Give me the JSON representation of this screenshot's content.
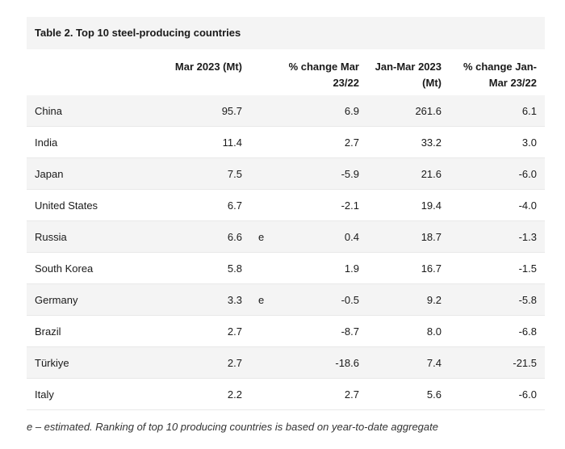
{
  "table": {
    "title": "Table 2. Top 10 steel-producing countries",
    "headers": {
      "col1": "Mar 2023 (Mt)",
      "col2_line1": "% change Mar",
      "col2_line2": "23/22",
      "col3_line1": "Jan-Mar 2023",
      "col3_line2": "(Mt)",
      "col4_line1": "% change Jan-",
      "col4_line2": "Mar 23/22"
    },
    "rows": [
      {
        "country": "China",
        "mar": "95.7",
        "flag": "",
        "chg_mar": "6.9",
        "ytd": "261.6",
        "chg_ytd": "6.1"
      },
      {
        "country": "India",
        "mar": "11.4",
        "flag": "",
        "chg_mar": "2.7",
        "ytd": "33.2",
        "chg_ytd": "3.0"
      },
      {
        "country": "Japan",
        "mar": "7.5",
        "flag": "",
        "chg_mar": "-5.9",
        "ytd": "21.6",
        "chg_ytd": "-6.0"
      },
      {
        "country": "United States",
        "mar": "6.7",
        "flag": "",
        "chg_mar": "-2.1",
        "ytd": "19.4",
        "chg_ytd": "-4.0"
      },
      {
        "country": "Russia",
        "mar": "6.6",
        "flag": "e",
        "chg_mar": "0.4",
        "ytd": "18.7",
        "chg_ytd": "-1.3"
      },
      {
        "country": "South Korea",
        "mar": "5.8",
        "flag": "",
        "chg_mar": "1.9",
        "ytd": "16.7",
        "chg_ytd": "-1.5"
      },
      {
        "country": "Germany",
        "mar": "3.3",
        "flag": "e",
        "chg_mar": "-0.5",
        "ytd": "9.2",
        "chg_ytd": "-5.8"
      },
      {
        "country": "Brazil",
        "mar": "2.7",
        "flag": "",
        "chg_mar": "-8.7",
        "ytd": "8.0",
        "chg_ytd": "-6.8"
      },
      {
        "country": "Türkiye",
        "mar": "2.7",
        "flag": "",
        "chg_mar": "-18.6",
        "ytd": "7.4",
        "chg_ytd": "-21.5"
      },
      {
        "country": "Italy",
        "mar": "2.2",
        "flag": "",
        "chg_mar": "2.7",
        "ytd": "5.6",
        "chg_ytd": "-6.0"
      }
    ]
  },
  "footnote": "e – estimated. Ranking of top 10 producing countries is based on year-to-date aggregate",
  "colors": {
    "highlight": "#f5e900",
    "underline": "#c0392b",
    "alt_row": "#f4f4f4"
  }
}
